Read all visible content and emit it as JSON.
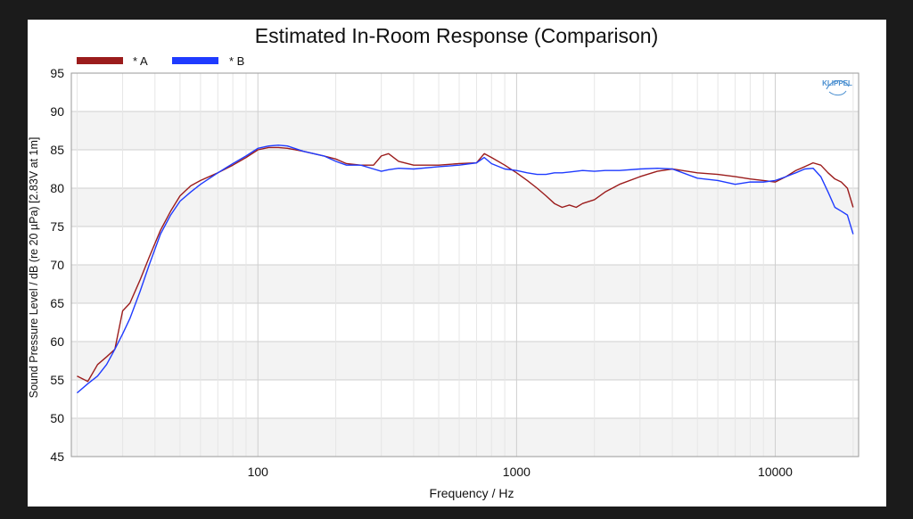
{
  "colors": {
    "series_a": "#9b1c1c",
    "series_b": "#1f3bff",
    "grid_major": "#cfcfcf",
    "grid_minor": "#e6e6e6",
    "band": "#f3f3f3",
    "logo": "#4a8fd0"
  },
  "logo": {
    "text": "KLIPPEL"
  },
  "chart_data": {
    "type": "line",
    "title": "Estimated In-Room Response (Comparison)",
    "xlabel": "Frequency / Hz",
    "ylabel": "Sound Pressure Level / dB (re 20 µPa)  [2.83V at 1m]",
    "x_scale": "log",
    "xlim": [
      19,
      21000
    ],
    "ylim": [
      45,
      95
    ],
    "x_ticks": [
      100,
      1000,
      10000
    ],
    "y_ticks": [
      45,
      50,
      55,
      60,
      65,
      70,
      75,
      80,
      85,
      90,
      95
    ],
    "grid": true,
    "legend_position": "top-left",
    "series": [
      {
        "name": "* A",
        "points": [
          [
            20,
            55.5
          ],
          [
            22,
            54.8
          ],
          [
            24,
            57.0
          ],
          [
            26,
            58.0
          ],
          [
            28,
            59.0
          ],
          [
            30,
            64.0
          ],
          [
            32,
            65.0
          ],
          [
            35,
            68.0
          ],
          [
            38,
            71.0
          ],
          [
            42,
            74.5
          ],
          [
            46,
            77.0
          ],
          [
            50,
            79.0
          ],
          [
            55,
            80.3
          ],
          [
            60,
            81.0
          ],
          [
            70,
            82.0
          ],
          [
            80,
            83.0
          ],
          [
            90,
            84.0
          ],
          [
            100,
            85.0
          ],
          [
            110,
            85.3
          ],
          [
            120,
            85.3
          ],
          [
            130,
            85.2
          ],
          [
            150,
            84.8
          ],
          [
            180,
            84.2
          ],
          [
            200,
            83.8
          ],
          [
            220,
            83.2
          ],
          [
            250,
            83.0
          ],
          [
            280,
            83.0
          ],
          [
            300,
            84.2
          ],
          [
            320,
            84.5
          ],
          [
            350,
            83.5
          ],
          [
            400,
            83.0
          ],
          [
            500,
            83.0
          ],
          [
            600,
            83.2
          ],
          [
            700,
            83.3
          ],
          [
            750,
            84.5
          ],
          [
            800,
            84.0
          ],
          [
            900,
            83.0
          ],
          [
            1000,
            82.0
          ],
          [
            1100,
            81.0
          ],
          [
            1200,
            80.0
          ],
          [
            1300,
            79.0
          ],
          [
            1400,
            78.0
          ],
          [
            1500,
            77.5
          ],
          [
            1600,
            77.8
          ],
          [
            1700,
            77.5
          ],
          [
            1800,
            78.0
          ],
          [
            2000,
            78.5
          ],
          [
            2200,
            79.5
          ],
          [
            2500,
            80.5
          ],
          [
            3000,
            81.5
          ],
          [
            3500,
            82.2
          ],
          [
            4000,
            82.5
          ],
          [
            5000,
            82.0
          ],
          [
            6000,
            81.8
          ],
          [
            7000,
            81.5
          ],
          [
            8000,
            81.2
          ],
          [
            9000,
            81.0
          ],
          [
            10000,
            80.8
          ],
          [
            11000,
            81.5
          ],
          [
            12000,
            82.3
          ],
          [
            13000,
            82.8
          ],
          [
            14000,
            83.3
          ],
          [
            15000,
            83.0
          ],
          [
            16000,
            82.0
          ],
          [
            17000,
            81.2
          ],
          [
            18000,
            80.8
          ],
          [
            19000,
            80.0
          ],
          [
            20000,
            77.5
          ]
        ]
      },
      {
        "name": "* B",
        "points": [
          [
            20,
            53.3
          ],
          [
            22,
            54.5
          ],
          [
            24,
            55.5
          ],
          [
            26,
            57.0
          ],
          [
            28,
            59.0
          ],
          [
            30,
            61.0
          ],
          [
            32,
            63.0
          ],
          [
            35,
            66.5
          ],
          [
            38,
            70.0
          ],
          [
            42,
            74.0
          ],
          [
            46,
            76.5
          ],
          [
            50,
            78.3
          ],
          [
            55,
            79.5
          ],
          [
            60,
            80.5
          ],
          [
            70,
            82.0
          ],
          [
            80,
            83.2
          ],
          [
            90,
            84.2
          ],
          [
            100,
            85.2
          ],
          [
            110,
            85.5
          ],
          [
            120,
            85.6
          ],
          [
            130,
            85.5
          ],
          [
            150,
            84.8
          ],
          [
            180,
            84.2
          ],
          [
            200,
            83.5
          ],
          [
            220,
            83.0
          ],
          [
            250,
            83.0
          ],
          [
            280,
            82.5
          ],
          [
            300,
            82.2
          ],
          [
            320,
            82.4
          ],
          [
            350,
            82.6
          ],
          [
            400,
            82.5
          ],
          [
            500,
            82.8
          ],
          [
            600,
            83.0
          ],
          [
            700,
            83.3
          ],
          [
            750,
            84.0
          ],
          [
            800,
            83.2
          ],
          [
            900,
            82.5
          ],
          [
            1000,
            82.3
          ],
          [
            1100,
            82.0
          ],
          [
            1200,
            81.8
          ],
          [
            1300,
            81.8
          ],
          [
            1400,
            82.0
          ],
          [
            1500,
            82.0
          ],
          [
            1600,
            82.1
          ],
          [
            1800,
            82.3
          ],
          [
            2000,
            82.2
          ],
          [
            2200,
            82.3
          ],
          [
            2500,
            82.3
          ],
          [
            3000,
            82.5
          ],
          [
            3500,
            82.6
          ],
          [
            4000,
            82.5
          ],
          [
            5000,
            81.3
          ],
          [
            6000,
            81.0
          ],
          [
            7000,
            80.5
          ],
          [
            8000,
            80.8
          ],
          [
            9000,
            80.8
          ],
          [
            10000,
            81.0
          ],
          [
            11000,
            81.5
          ],
          [
            12000,
            82.0
          ],
          [
            13000,
            82.5
          ],
          [
            14000,
            82.6
          ],
          [
            15000,
            81.5
          ],
          [
            16000,
            79.5
          ],
          [
            17000,
            77.5
          ],
          [
            18000,
            77.0
          ],
          [
            19000,
            76.5
          ],
          [
            20000,
            74.0
          ]
        ]
      }
    ]
  }
}
